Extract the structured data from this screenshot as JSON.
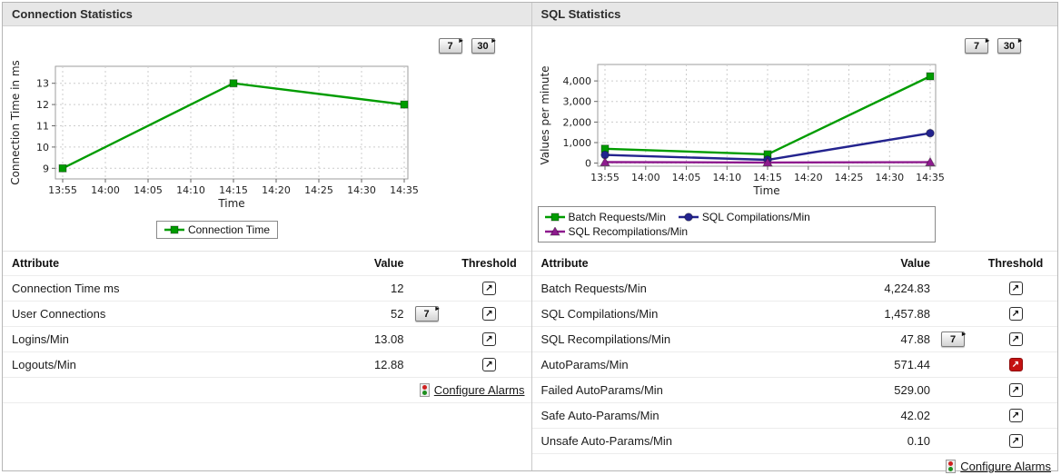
{
  "icons": {
    "button_arrow": "▸",
    "threshold_arrow": "↗"
  },
  "colors": {
    "green_series": "#009c00",
    "navy_series": "#23238e",
    "purple_series": "#8e1b8e",
    "alert_red": "#c41212",
    "header_bg": "#e7e7e7"
  },
  "panels": [
    {
      "title": "Connection Statistics",
      "toolbar": {
        "button_7": "7",
        "button_30": "30"
      },
      "chart_data": {
        "type": "line",
        "xlabel": "Time",
        "ylabel": "Connection Time in ms",
        "x_tick_labels": [
          "13:55",
          "14:00",
          "14:05",
          "14:10",
          "14:15",
          "14:20",
          "14:25",
          "14:30",
          "14:35"
        ],
        "data_tick_indices": [
          0,
          4,
          8
        ],
        "y_tick_values": [
          9,
          10,
          11,
          12,
          13
        ],
        "y_tick_labels": [
          "9",
          "10",
          "11",
          "12",
          "13"
        ],
        "ylim": [
          8.5,
          13.8
        ],
        "grid": true,
        "legend_position": "bottom-center",
        "series": [
          {
            "name": "Connection Time",
            "color": "#009c00",
            "marker": "square",
            "values": [
              9,
              13,
              12
            ]
          }
        ]
      },
      "table": {
        "headers": [
          "Attribute",
          "Value",
          "Threshold"
        ],
        "rows": [
          {
            "attribute": "Connection Time ms",
            "value": "12",
            "history_button_label": null,
            "threshold_alert": false
          },
          {
            "attribute": "User Connections",
            "value": "52",
            "history_button_label": "7",
            "threshold_alert": false
          },
          {
            "attribute": "Logins/Min",
            "value": "13.08",
            "history_button_label": null,
            "threshold_alert": false
          },
          {
            "attribute": "Logouts/Min",
            "value": "12.88",
            "history_button_label": null,
            "threshold_alert": false
          }
        ]
      },
      "configure_alarms": {
        "label": "Configure Alarms"
      }
    },
    {
      "title": "SQL Statistics",
      "toolbar": {
        "button_7": "7",
        "button_30": "30"
      },
      "chart_data": {
        "type": "line",
        "xlabel": "Time",
        "ylabel": "Values per minute",
        "x_tick_labels": [
          "13:55",
          "14:00",
          "14:05",
          "14:10",
          "14:15",
          "14:20",
          "14:25",
          "14:30",
          "14:35"
        ],
        "data_tick_indices": [
          0,
          4,
          8
        ],
        "y_tick_values": [
          0,
          1000,
          2000,
          3000,
          4000
        ],
        "y_tick_labels": [
          "0",
          "1,000",
          "2,000",
          "3,000",
          "4,000"
        ],
        "ylim": [
          -150,
          4800
        ],
        "grid": true,
        "legend_position": "bottom-left",
        "series": [
          {
            "name": "Batch Requests/Min",
            "color": "#009c00",
            "marker": "square",
            "values": [
              700,
              430,
              4224.83
            ]
          },
          {
            "name": "SQL Compilations/Min",
            "color": "#23238e",
            "marker": "circle",
            "values": [
              400,
              160,
              1457.88
            ]
          },
          {
            "name": "SQL Recompilations/Min",
            "color": "#8e1b8e",
            "marker": "triangle",
            "values": [
              50,
              30,
              47.88
            ]
          }
        ]
      },
      "table": {
        "headers": [
          "Attribute",
          "Value",
          "Threshold"
        ],
        "rows": [
          {
            "attribute": "Batch Requests/Min",
            "value": "4,224.83",
            "history_button_label": null,
            "threshold_alert": false
          },
          {
            "attribute": "SQL Compilations/Min",
            "value": "1,457.88",
            "history_button_label": null,
            "threshold_alert": false
          },
          {
            "attribute": "SQL Recompilations/Min",
            "value": "47.88",
            "history_button_label": "7",
            "threshold_alert": false
          },
          {
            "attribute": "AutoParams/Min",
            "value": "571.44",
            "history_button_label": null,
            "threshold_alert": true
          },
          {
            "attribute": "Failed AutoParams/Min",
            "value": "529.00",
            "history_button_label": null,
            "threshold_alert": false
          },
          {
            "attribute": "Safe Auto-Params/Min",
            "value": "42.02",
            "history_button_label": null,
            "threshold_alert": false
          },
          {
            "attribute": "Unsafe Auto-Params/Min",
            "value": "0.10",
            "history_button_label": null,
            "threshold_alert": false
          }
        ]
      },
      "configure_alarms": {
        "label": "Configure Alarms"
      }
    }
  ]
}
